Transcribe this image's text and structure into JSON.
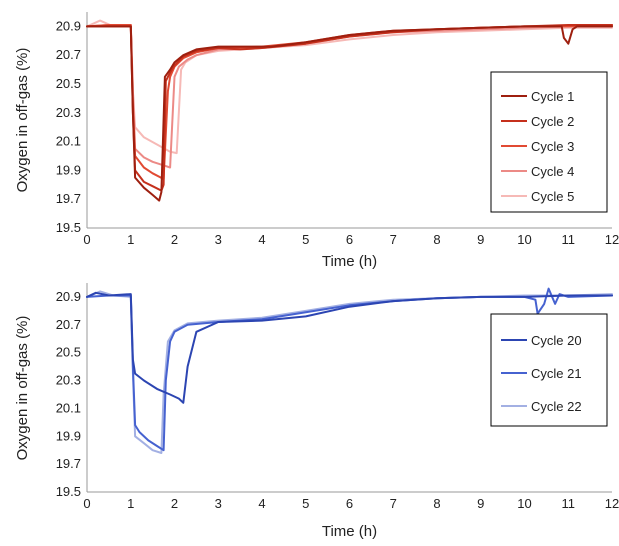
{
  "chart_data": [
    {
      "type": "line",
      "xlabel": "Time (h)",
      "ylabel": "Oxygen in off-gas (%)",
      "xlim": [
        0,
        12
      ],
      "ylim": [
        19.5,
        21.0
      ],
      "x_ticks": [
        "0",
        "1",
        "2",
        "3",
        "4",
        "5",
        "6",
        "7",
        "8",
        "9",
        "10",
        "11",
        "12"
      ],
      "y_ticks": [
        "19.5",
        "19.7",
        "19.9",
        "20.1",
        "20.3",
        "20.5",
        "20.7",
        "20.9"
      ],
      "grid": false,
      "legend": "right",
      "series": [
        {
          "name": "Cycle 1",
          "color": "#9e1f0f",
          "x": [
            0,
            0.5,
            1.0,
            1.05,
            1.1,
            1.3,
            1.5,
            1.65,
            1.7,
            1.78,
            1.9,
            2.0,
            2.2,
            2.5,
            3.0,
            3.5,
            4.0,
            4.2,
            4.5,
            5.0,
            6.0,
            7.0,
            8.0,
            9.0,
            10.0,
            10.5,
            10.85,
            10.9,
            11.0,
            11.1,
            11.2,
            12.0
          ],
          "y": [
            20.9,
            20.9,
            20.9,
            20.3,
            19.85,
            19.78,
            19.73,
            19.69,
            19.75,
            20.55,
            20.6,
            20.65,
            20.7,
            20.74,
            20.76,
            20.76,
            20.76,
            20.76,
            20.77,
            20.79,
            20.84,
            20.87,
            20.88,
            20.89,
            20.9,
            20.9,
            20.9,
            20.82,
            20.78,
            20.88,
            20.9,
            20.9
          ]
        },
        {
          "name": "Cycle 2",
          "color": "#c5301c",
          "x": [
            0,
            0.5,
            1.0,
            1.05,
            1.1,
            1.3,
            1.5,
            1.7,
            1.75,
            1.8,
            1.9,
            2.0,
            2.2,
            2.5,
            3.0,
            3.5,
            4.0,
            5.0,
            6.0,
            7.0,
            8.0,
            9.0,
            10.0,
            11.0,
            12.0
          ],
          "y": [
            20.9,
            20.9,
            20.9,
            20.3,
            19.9,
            19.82,
            19.79,
            19.76,
            19.8,
            20.52,
            20.58,
            20.63,
            20.69,
            20.73,
            20.75,
            20.74,
            20.75,
            20.78,
            20.83,
            20.86,
            20.88,
            20.89,
            20.9,
            20.91,
            20.91
          ]
        },
        {
          "name": "Cycle 3",
          "color": "#e14a33",
          "x": [
            0,
            0.5,
            1.0,
            1.05,
            1.1,
            1.3,
            1.5,
            1.75,
            1.85,
            1.9,
            2.0,
            2.2,
            2.5,
            3.0,
            4.0,
            5.0,
            6.0,
            7.0,
            8.0,
            9.0,
            10.0,
            11.0,
            12.0
          ],
          "y": [
            20.9,
            20.91,
            20.91,
            20.35,
            20.0,
            19.92,
            19.88,
            19.84,
            20.45,
            20.55,
            20.62,
            20.68,
            20.72,
            20.75,
            20.76,
            20.79,
            20.84,
            20.87,
            20.88,
            20.89,
            20.9,
            20.9,
            20.91
          ]
        },
        {
          "name": "Cycle 4",
          "color": "#ec8a86",
          "x": [
            0,
            0.5,
            1.0,
            1.05,
            1.1,
            1.3,
            1.5,
            1.8,
            1.9,
            2.0,
            2.1,
            2.3,
            2.5,
            3.0,
            4.0,
            5.0,
            6.0,
            7.0,
            8.0,
            9.0,
            10.0,
            11.0,
            12.0
          ],
          "y": [
            20.9,
            20.91,
            20.91,
            20.45,
            20.05,
            19.99,
            19.96,
            19.93,
            19.92,
            20.55,
            20.62,
            20.67,
            20.7,
            20.74,
            20.75,
            20.78,
            20.83,
            20.86,
            20.87,
            20.88,
            20.89,
            20.9,
            20.9
          ]
        },
        {
          "name": "Cycle 5",
          "color": "#f6b9b6",
          "x": [
            0,
            0.3,
            0.6,
            1.0,
            1.05,
            1.1,
            1.3,
            1.6,
            1.9,
            2.05,
            2.15,
            2.25,
            2.5,
            3.0,
            4.0,
            5.0,
            6.0,
            7.0,
            8.0,
            9.0,
            10.0,
            11.0,
            12.0
          ],
          "y": [
            20.9,
            20.94,
            20.9,
            20.9,
            20.45,
            20.2,
            20.13,
            20.08,
            20.03,
            20.02,
            20.6,
            20.65,
            20.7,
            20.73,
            20.75,
            20.77,
            20.81,
            20.84,
            20.86,
            20.87,
            20.88,
            20.89,
            20.89
          ]
        }
      ]
    },
    {
      "type": "line",
      "xlabel": "Time (h)",
      "ylabel": "Oxygen in off-gas (%)",
      "xlim": [
        0,
        12
      ],
      "ylim": [
        19.5,
        21.0
      ],
      "x_ticks": [
        "0",
        "1",
        "2",
        "3",
        "4",
        "5",
        "6",
        "7",
        "8",
        "9",
        "10",
        "11",
        "12"
      ],
      "y_ticks": [
        "19.5",
        "19.7",
        "19.9",
        "20.1",
        "20.3",
        "20.5",
        "20.7",
        "20.9"
      ],
      "grid": false,
      "legend": "right",
      "series": [
        {
          "name": "Cycle 20",
          "color": "#2c45b2",
          "x": [
            0,
            0.2,
            0.5,
            1.0,
            1.05,
            1.1,
            1.3,
            1.6,
            1.9,
            2.1,
            2.2,
            2.3,
            2.5,
            3.0,
            4.0,
            5.0,
            6.0,
            7.0,
            8.0,
            9.0,
            10.0,
            11.0,
            12.0
          ],
          "y": [
            20.9,
            20.93,
            20.91,
            20.92,
            20.45,
            20.35,
            20.3,
            20.24,
            20.2,
            20.17,
            20.14,
            20.4,
            20.65,
            20.72,
            20.73,
            20.76,
            20.83,
            20.87,
            20.89,
            20.9,
            20.9,
            20.91,
            20.91
          ]
        },
        {
          "name": "Cycle 21",
          "color": "#4662d0",
          "x": [
            0,
            0.5,
            1.0,
            1.05,
            1.1,
            1.2,
            1.4,
            1.6,
            1.75,
            1.8,
            1.9,
            2.0,
            2.3,
            3.0,
            4.0,
            5.0,
            6.0,
            7.0,
            8.0,
            9.0,
            10.0,
            10.25,
            10.3,
            10.45,
            10.55,
            10.7,
            10.8,
            11.0,
            12.0
          ],
          "y": [
            20.9,
            20.91,
            20.91,
            20.4,
            19.98,
            19.93,
            19.87,
            19.83,
            19.8,
            20.3,
            20.58,
            20.65,
            20.7,
            20.72,
            20.74,
            20.79,
            20.84,
            20.87,
            20.89,
            20.9,
            20.9,
            20.88,
            20.78,
            20.85,
            20.96,
            20.85,
            20.92,
            20.9,
            20.91
          ]
        },
        {
          "name": "Cycle 22",
          "color": "#a3b0e3",
          "x": [
            0,
            0.3,
            0.6,
            1.0,
            1.05,
            1.1,
            1.3,
            1.5,
            1.7,
            1.75,
            1.85,
            2.0,
            2.3,
            3.0,
            4.0,
            5.0,
            6.0,
            7.0,
            8.0,
            9.0,
            10.0,
            11.0,
            12.0
          ],
          "y": [
            20.9,
            20.94,
            20.91,
            20.9,
            20.35,
            19.9,
            19.85,
            19.8,
            19.78,
            20.2,
            20.58,
            20.66,
            20.71,
            20.73,
            20.75,
            20.8,
            20.85,
            20.88,
            20.89,
            20.9,
            20.91,
            20.91,
            20.92
          ]
        }
      ]
    }
  ]
}
